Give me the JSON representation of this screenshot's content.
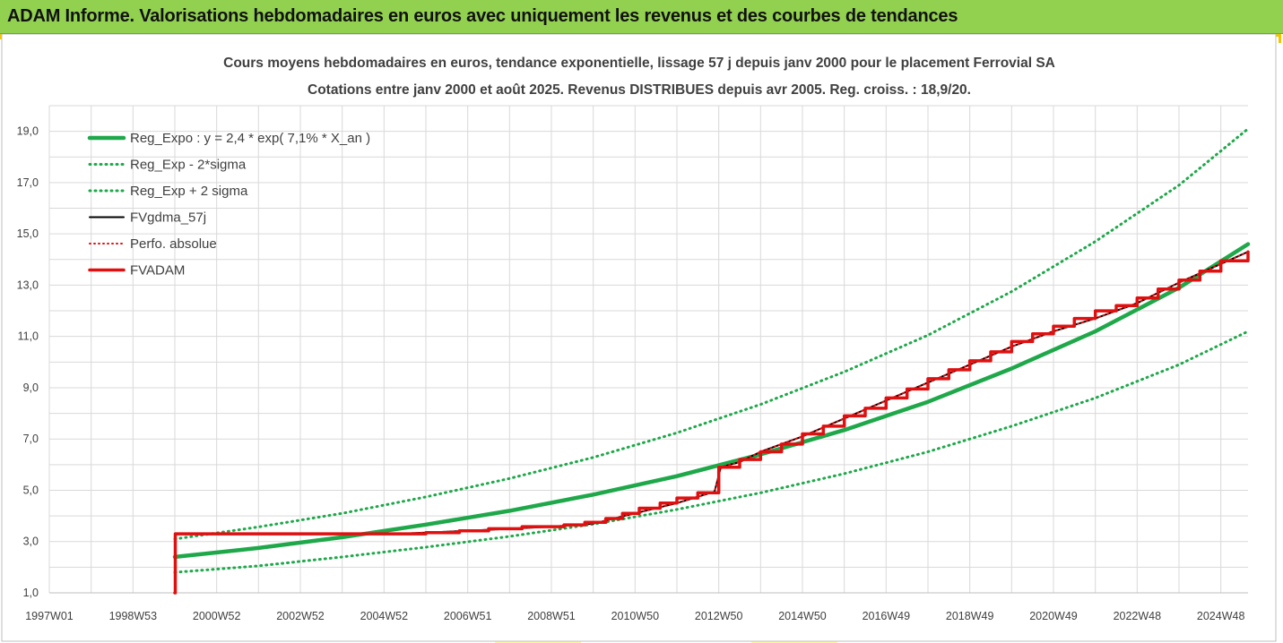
{
  "header": {
    "title": "ADAM Informe. Valorisations hebdomadaires en euros avec uniquement les revenus et des courbes de tendances"
  },
  "colors": {
    "header_bg": "#92d050",
    "trend": "#1fa84a",
    "price": "#000000",
    "adam": "#e01010",
    "grid": "#d9d9d9"
  },
  "chart_data": {
    "type": "line",
    "title": "Cours moyens hebdomadaires en euros, tendance exponentielle, lissage 57 j depuis janv 2000  pour le placement Ferrovial SA",
    "subtitle": "Cotations entre janv 2000 et août 2025. Revenus DISTRIBUES depuis avr 2005. Reg. croiss. : 18,9/20.",
    "xlabel": "",
    "ylabel": "",
    "ylim": [
      1,
      20
    ],
    "xlim": [
      1997.0,
      2025.65
    ],
    "grid": true,
    "legend_position": "top-left",
    "y_ticks": [
      "1,0",
      "3,0",
      "5,0",
      "7,0",
      "9,0",
      "11,0",
      "13,0",
      "15,0",
      "17,0",
      "19,0"
    ],
    "x_ticks": [
      {
        "label": "1997W01",
        "x": 1997.0
      },
      {
        "label": "1998W53",
        "x": 1999.0
      },
      {
        "label": "2000W52",
        "x": 2001.0
      },
      {
        "label": "2002W52",
        "x": 2003.0
      },
      {
        "label": "2004W52",
        "x": 2005.0
      },
      {
        "label": "2006W51",
        "x": 2007.0
      },
      {
        "label": "2008W51",
        "x": 2009.0
      },
      {
        "label": "2010W50",
        "x": 2011.0
      },
      {
        "label": "2012W50",
        "x": 2013.0
      },
      {
        "label": "2014W50",
        "x": 2015.0
      },
      {
        "label": "2016W49",
        "x": 2017.0
      },
      {
        "label": "2018W49",
        "x": 2019.0
      },
      {
        "label": "2020W49",
        "x": 2021.0
      },
      {
        "label": "2022W48",
        "x": 2023.0
      },
      {
        "label": "2024W48",
        "x": 2025.0
      }
    ],
    "series": [
      {
        "name": "Reg_Expo : y = 2,4 * exp( 7,1% *  X_an )",
        "style": "solid-green",
        "x": [
          2000.0,
          2002.0,
          2004.0,
          2006.0,
          2008.0,
          2010.0,
          2012.0,
          2014.0,
          2016.0,
          2018.0,
          2020.0,
          2022.0,
          2024.0,
          2025.65
        ],
        "y": [
          2.4,
          2.75,
          3.17,
          3.66,
          4.2,
          4.83,
          5.55,
          6.4,
          7.35,
          8.45,
          9.75,
          11.2,
          12.9,
          14.6
        ]
      },
      {
        "name": "Reg_Exp - 2*sigma",
        "style": "dotted-green",
        "x": [
          2000.0,
          2002.0,
          2004.0,
          2006.0,
          2008.0,
          2010.0,
          2012.0,
          2014.0,
          2016.0,
          2018.0,
          2020.0,
          2022.0,
          2024.0,
          2025.65
        ],
        "y": [
          1.8,
          2.05,
          2.4,
          2.78,
          3.2,
          3.68,
          4.25,
          4.9,
          5.65,
          6.5,
          7.5,
          8.6,
          9.9,
          11.2
        ]
      },
      {
        "name": "Reg_Exp + 2 sigma",
        "style": "dotted-green",
        "x": [
          2000.0,
          2002.0,
          2004.0,
          2006.0,
          2008.0,
          2010.0,
          2012.0,
          2014.0,
          2016.0,
          2018.0,
          2020.0,
          2022.0,
          2024.0,
          2025.65
        ],
        "y": [
          3.1,
          3.57,
          4.1,
          4.74,
          5.46,
          6.28,
          7.24,
          8.35,
          9.62,
          11.05,
          12.75,
          14.7,
          16.9,
          19.1
        ]
      },
      {
        "name": "FVgdma_57j",
        "style": "solid-black",
        "x": [
          2000.0,
          2000.01,
          2005.3,
          2006.0,
          2007.0,
          2008.0,
          2009.0,
          2010.0,
          2011.0,
          2012.0,
          2012.9,
          2013.05,
          2013.5,
          2014.0,
          2015.0,
          2016.0,
          2017.0,
          2018.0,
          2019.0,
          2020.0,
          2021.0,
          2022.0,
          2023.0,
          2024.0,
          2025.65
        ],
        "y": [
          1.0,
          3.3,
          3.3,
          3.35,
          3.42,
          3.5,
          3.58,
          3.7,
          4.1,
          4.5,
          4.95,
          5.9,
          6.1,
          6.5,
          7.1,
          7.8,
          8.5,
          9.2,
          9.9,
          10.6,
          11.2,
          11.7,
          12.3,
          13.1,
          14.3
        ]
      },
      {
        "name": "Perfo. absolue",
        "style": "dotted-red",
        "x": [
          2000.0,
          2000.01,
          2005.3,
          2006.0,
          2007.0,
          2008.0,
          2009.0,
          2010.0,
          2011.0,
          2012.0,
          2012.9,
          2013.05,
          2013.5,
          2014.0,
          2015.0,
          2016.0,
          2017.0,
          2018.0,
          2019.0,
          2020.0,
          2021.0,
          2022.0,
          2023.0,
          2024.0,
          2025.65
        ],
        "y": [
          1.0,
          3.3,
          3.3,
          3.35,
          3.42,
          3.5,
          3.58,
          3.7,
          4.1,
          4.5,
          4.95,
          5.9,
          6.1,
          6.5,
          7.1,
          7.8,
          8.5,
          9.2,
          9.9,
          10.6,
          11.2,
          11.7,
          12.3,
          13.1,
          14.3
        ]
      },
      {
        "name": "FVADAM",
        "style": "stepped-red",
        "x": [
          2000.0,
          2000.01,
          2005.3,
          2006.0,
          2006.8,
          2007.5,
          2008.3,
          2009.3,
          2009.8,
          2010.3,
          2010.7,
          2011.1,
          2011.6,
          2012.0,
          2012.5,
          2013.0,
          2013.5,
          2014.0,
          2014.5,
          2015.0,
          2015.5,
          2016.0,
          2016.5,
          2017.0,
          2017.5,
          2018.0,
          2018.5,
          2019.0,
          2019.5,
          2020.0,
          2020.5,
          2021.0,
          2021.5,
          2022.0,
          2022.5,
          2023.0,
          2023.5,
          2024.0,
          2024.5,
          2025.0,
          2025.65
        ],
        "y": [
          1.0,
          3.3,
          3.3,
          3.35,
          3.42,
          3.5,
          3.58,
          3.65,
          3.75,
          3.9,
          4.1,
          4.3,
          4.5,
          4.7,
          4.9,
          5.9,
          6.2,
          6.5,
          6.8,
          7.2,
          7.5,
          7.9,
          8.2,
          8.6,
          8.95,
          9.35,
          9.7,
          10.05,
          10.4,
          10.8,
          11.1,
          11.4,
          11.7,
          12.0,
          12.2,
          12.5,
          12.85,
          13.2,
          13.55,
          13.95,
          14.3
        ]
      }
    ]
  }
}
